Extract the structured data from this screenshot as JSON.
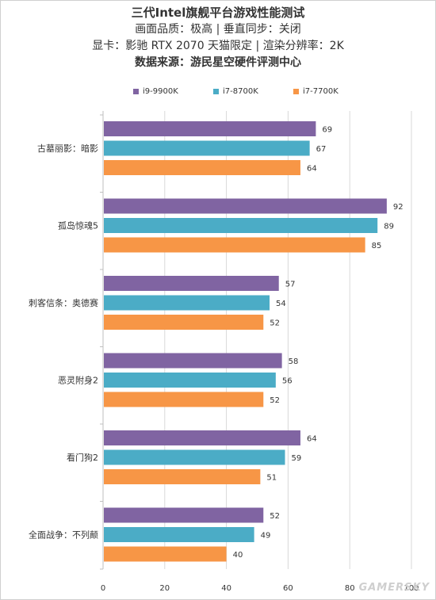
{
  "chart_data": {
    "type": "bar",
    "orientation": "horizontal",
    "title": "三代Intel旗舰平台游戏性能测试",
    "subtitle_lines": [
      "画面品质：极高 | 垂直同步：关闭",
      "显卡：影驰 RTX 2070 天猫限定 | 渲染分辨率：2K"
    ],
    "source": "数据来源：游民星空硬件评测中心",
    "categories": [
      "古墓丽影：暗影",
      "孤岛惊魂5",
      "刺客信条：奥德赛",
      "恶灵附身2",
      "看门狗2",
      "全面战争：不列颠"
    ],
    "series": [
      {
        "name": "i9-9900K",
        "color": "#8064a2",
        "values": [
          69,
          92,
          57,
          58,
          64,
          52
        ]
      },
      {
        "name": "i7-8700K",
        "color": "#4bacc6",
        "values": [
          67,
          89,
          54,
          56,
          59,
          49
        ]
      },
      {
        "name": "i7-7700K",
        "color": "#f79646",
        "values": [
          64,
          85,
          52,
          52,
          51,
          40
        ]
      }
    ],
    "xlim": [
      0,
      100
    ],
    "xticks": [
      0,
      20,
      40,
      60,
      80,
      100
    ],
    "legend_position": "top",
    "grid": true
  },
  "watermark": "GAMERSKY"
}
